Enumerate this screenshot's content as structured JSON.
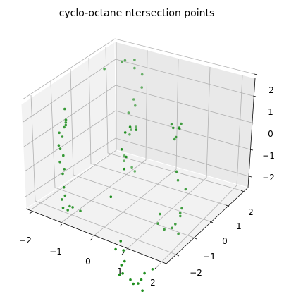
{
  "chart_data": {
    "type": "scatter",
    "projection": "3d",
    "title": "cyclo-octane ntersection points",
    "xlabel": "",
    "ylabel": "",
    "zlabel": "",
    "x_ticks": [
      "−2",
      "−1",
      "0",
      "1",
      "2"
    ],
    "y_ticks": [
      "−2",
      "−1",
      "0",
      "1",
      "2"
    ],
    "z_ticks": [
      "−2",
      "−1",
      "0",
      "1",
      "2"
    ],
    "xlim": [
      -2.3,
      2.3
    ],
    "ylim": [
      -2.3,
      2.3
    ],
    "zlim": [
      -2.4,
      2.4
    ],
    "grid": true,
    "series": [
      {
        "color": "#008000",
        "points": [
          [
            -1.1,
            1.0,
            1.9
          ],
          [
            -1.6,
            -0.4,
            1.0
          ],
          [
            -1.5,
            -0.5,
            0.7
          ],
          [
            -1.6,
            -0.4,
            0.3
          ],
          [
            -1.6,
            -0.5,
            0.0
          ],
          [
            -1.6,
            -0.6,
            -0.4
          ],
          [
            -1.6,
            -0.6,
            -0.9
          ],
          [
            -1.5,
            -0.6,
            -1.3
          ],
          [
            -1.4,
            -0.7,
            -1.7
          ],
          [
            -1.4,
            -0.8,
            -2.1
          ],
          [
            -1.3,
            -0.9,
            -2.3
          ],
          [
            -1.2,
            -0.8,
            -2.4
          ],
          [
            -1.1,
            -0.7,
            -2.3
          ],
          [
            -0.9,
            -0.6,
            -2.4
          ],
          [
            -1.3,
            -0.5,
            -2.5
          ],
          [
            -1.5,
            -0.5,
            0.6
          ],
          [
            -1.7,
            -0.5,
            0.1
          ],
          [
            -1.5,
            -0.6,
            -0.6
          ],
          [
            -1.4,
            -0.7,
            -1.0
          ],
          [
            -1.3,
            -0.8,
            -1.9
          ],
          [
            -1.5,
            -0.5,
            0.5
          ],
          [
            -1.6,
            -0.7,
            -0.2
          ],
          [
            -0.6,
            1.3,
            2.3
          ],
          [
            -0.7,
            1.3,
            2.2
          ],
          [
            -0.4,
            1.5,
            2.3
          ],
          [
            -0.5,
            1.7,
            1.8
          ],
          [
            -0.3,
            1.8,
            1.1
          ],
          [
            -0.5,
            1.7,
            0.6
          ],
          [
            -0.6,
            1.6,
            0.1
          ],
          [
            -0.5,
            1.6,
            -0.5
          ],
          [
            -0.6,
            1.7,
            -0.8
          ],
          [
            -0.4,
            1.7,
            -0.4
          ],
          [
            -0.7,
            1.6,
            -1.6
          ],
          [
            -0.7,
            1.6,
            -1.8
          ],
          [
            -0.5,
            1.7,
            -2.0
          ],
          [
            -0.4,
            1.7,
            -2.1
          ],
          [
            -0.3,
            1.8,
            1.6
          ],
          [
            -0.5,
            1.8,
            0.3
          ],
          [
            0.6,
            -1.6,
            -0.4
          ],
          [
            0.9,
            -1.4,
            0.7
          ],
          [
            0.9,
            -1.3,
            1.1
          ],
          [
            0.8,
            -1.4,
            1.4
          ],
          [
            0.9,
            -1.4,
            2.1
          ],
          [
            1.0,
            -1.3,
            2.3
          ],
          [
            1.2,
            -1.3,
            2.3
          ],
          [
            0.9,
            -1.5,
            -2.0
          ],
          [
            1.0,
            -1.5,
            -2.3
          ],
          [
            1.1,
            -1.6,
            -2.6
          ],
          [
            1.0,
            -1.6,
            -2.8
          ],
          [
            1.1,
            -1.7,
            -3.0
          ],
          [
            1.3,
            -1.6,
            -3.2
          ],
          [
            1.4,
            -1.6,
            -3.3
          ],
          [
            1.5,
            -1.5,
            -3.3
          ],
          [
            1.6,
            -1.5,
            -3.1
          ],
          [
            1.7,
            -1.5,
            -2.8
          ],
          [
            1.9,
            -1.4,
            -2.6
          ],
          [
            1.7,
            -1.6,
            -3.4
          ],
          [
            0.8,
            -1.6,
            -2.3
          ],
          [
            1.0,
            -1.7,
            -3.1
          ],
          [
            1.7,
            -0.1,
            2.0
          ],
          [
            2.0,
            -0.2,
            2.1
          ],
          [
            1.7,
            0.0,
            1.8
          ],
          [
            1.9,
            0.1,
            2.0
          ],
          [
            1.8,
            0.2,
            1.7
          ],
          [
            1.8,
            0.0,
            1.5
          ],
          [
            1.7,
            0.1,
            1.3
          ],
          [
            1.9,
            -0.1,
            0.3
          ],
          [
            1.9,
            0.0,
            -0.1
          ],
          [
            2.1,
            0.1,
            -0.4
          ],
          [
            2.1,
            -0.1,
            -1.0
          ],
          [
            2.0,
            0.0,
            -1.3
          ],
          [
            1.9,
            0.2,
            -1.6
          ],
          [
            1.8,
            0.1,
            -1.9
          ],
          [
            1.7,
            0.1,
            -2.1
          ],
          [
            1.5,
            0.0,
            -2.2
          ],
          [
            1.4,
            -0.2,
            -1.9
          ],
          [
            1.4,
            -0.1,
            -1.6
          ],
          [
            1.8,
            0.3,
            -2.4
          ]
        ]
      }
    ]
  }
}
